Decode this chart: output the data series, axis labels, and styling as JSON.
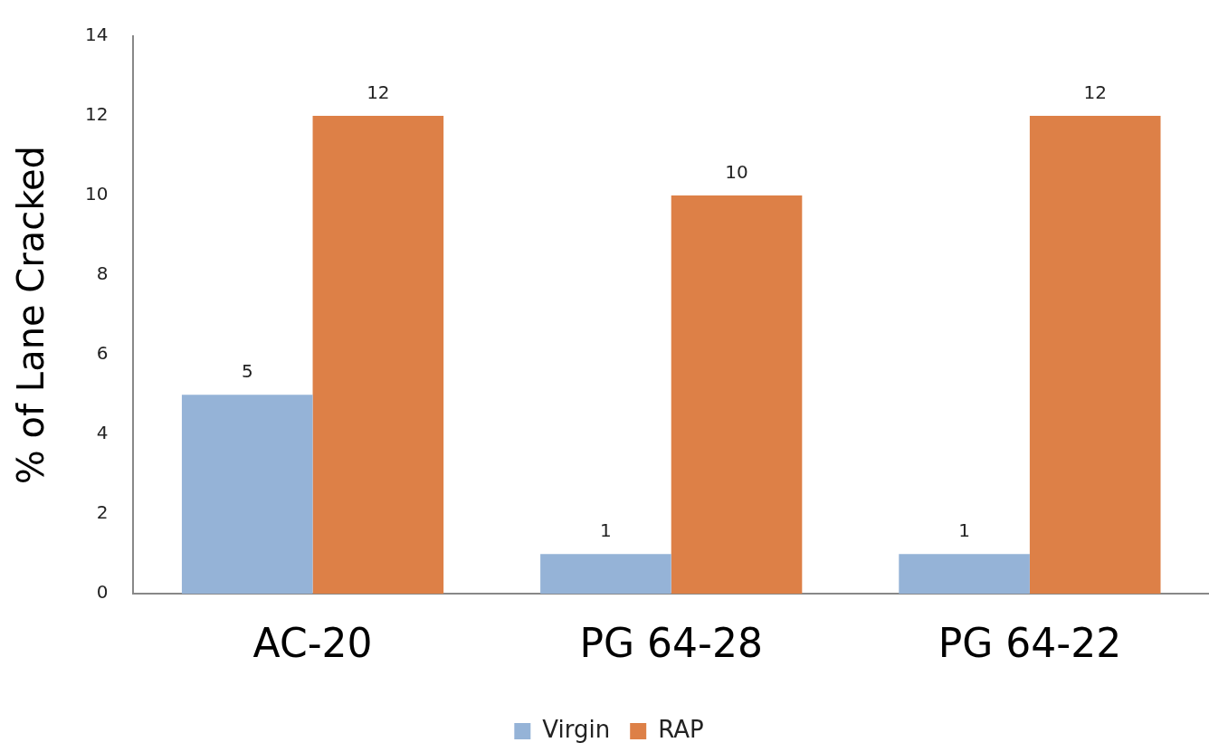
{
  "chart_data": {
    "type": "bar",
    "ylabel": "% of Lane Cracked",
    "categories": [
      "AC-20",
      "PG 64-28",
      "PG 64-22"
    ],
    "series": [
      {
        "name": "Virgin",
        "color": "#95b3d7",
        "values": [
          5,
          1,
          1
        ]
      },
      {
        "name": "RAP",
        "color": "#dd8047",
        "values": [
          12,
          10,
          12
        ]
      }
    ],
    "ylim": [
      0,
      14
    ],
    "yticks": [
      0,
      2,
      4,
      6,
      8,
      10,
      12,
      14
    ],
    "grid": false,
    "legend": "bottom",
    "data_labels": true
  }
}
